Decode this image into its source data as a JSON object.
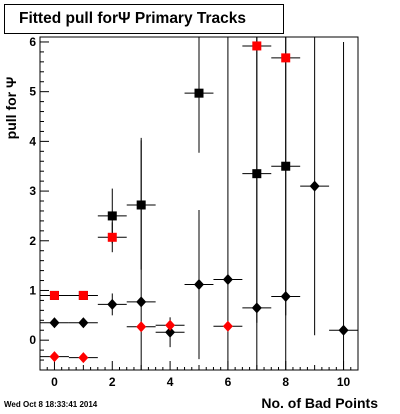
{
  "chart_data": {
    "type": "scatter",
    "title": "Fitted pull forΨ  Primary Tracks",
    "xlabel": "No. of Bad Points",
    "ylabel": "pull for Ψ",
    "xlim": [
      -0.5,
      10.5
    ],
    "ylim": [
      -0.6,
      6.1
    ],
    "x_ticks": [
      "0",
      "2",
      "4",
      "6",
      "8",
      "10"
    ],
    "y_ticks": [
      "0",
      "1",
      "2",
      "3",
      "4",
      "5",
      "6"
    ],
    "grid": false,
    "series": [
      {
        "marker": "square",
        "color": "#000000",
        "points": [
          {
            "x": 0,
            "y": 0.9,
            "yerr": 0.06
          },
          {
            "x": 1,
            "y": 0.9,
            "yerr": 0.06
          },
          {
            "x": 2,
            "y": 2.5,
            "yerr": 0.55
          },
          {
            "x": 3,
            "y": 2.72,
            "yerr": 1.3
          },
          {
            "x": 5,
            "y": 4.97,
            "yerr": 1.2
          },
          {
            "x": 7,
            "y": 3.35,
            "yerr": 3.0
          },
          {
            "x": 8,
            "y": 3.5,
            "yerr": 3.0
          }
        ]
      },
      {
        "marker": "square",
        "color": "#ff0000",
        "points": [
          {
            "x": 0,
            "y": 0.9,
            "yerr": 0.06
          },
          {
            "x": 1,
            "y": 0.9,
            "yerr": 0.06
          },
          {
            "x": 2,
            "y": 2.07,
            "yerr": 0.3
          },
          {
            "x": 7,
            "y": 5.92,
            "yerr": 0.0
          },
          {
            "x": 8,
            "y": 5.68,
            "yerr": 0.0
          }
        ]
      },
      {
        "marker": "diamond",
        "color": "#000000",
        "points": [
          {
            "x": 0,
            "y": 0.35,
            "yerr": 0.04
          },
          {
            "x": 1,
            "y": 0.35,
            "yerr": 0.04
          },
          {
            "x": 2,
            "y": 0.72,
            "yerr": 0.22
          },
          {
            "x": 3,
            "y": 0.77,
            "yerr": 3.3
          },
          {
            "x": 4,
            "y": 0.16,
            "yerr": 0.3
          },
          {
            "x": 5,
            "y": 1.12,
            "yerr": 1.5
          },
          {
            "x": 6,
            "y": 1.22,
            "yerr": 5.0
          },
          {
            "x": 7,
            "y": 0.65,
            "yerr": 5.5
          },
          {
            "x": 8,
            "y": 0.88,
            "yerr": 5.5
          },
          {
            "x": 9,
            "y": 3.1,
            "yerr": 3.0
          },
          {
            "x": 10,
            "y": 0.2,
            "yerr": 5.8
          }
        ]
      },
      {
        "marker": "diamond",
        "color": "#ff0000",
        "points": [
          {
            "x": 0,
            "y": -0.33,
            "yerr": 0.0
          },
          {
            "x": 1,
            "y": -0.35,
            "yerr": 0.0
          },
          {
            "x": 3,
            "y": 0.27,
            "yerr": 0.0
          },
          {
            "x": 4,
            "y": 0.3,
            "yerr": 0.0
          },
          {
            "x": 6,
            "y": 0.28,
            "yerr": 0.0
          }
        ]
      }
    ]
  },
  "footer": {
    "timestamp": "Wed Oct  8 18:33:41 2014"
  }
}
